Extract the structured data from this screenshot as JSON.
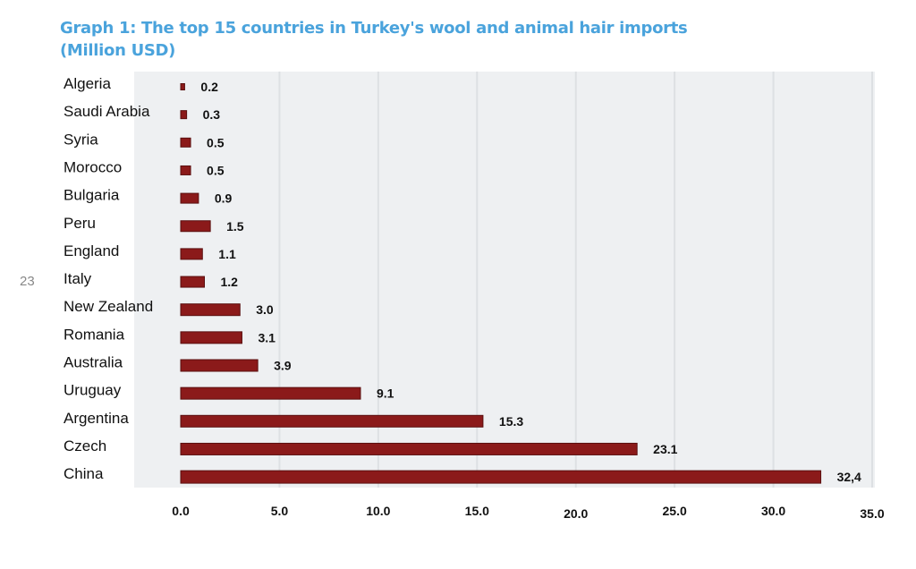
{
  "page_number": "23",
  "chart_data": {
    "type": "bar",
    "orientation": "horizontal",
    "title_line1": "Graph 1: The top 15 countries in Turkey's wool and animal hair imports",
    "title_line2": "(Million USD)",
    "categories": [
      "Algeria",
      "Saudi Arabia",
      "Syria",
      "Morocco",
      "Bulgaria",
      "Peru",
      "England",
      "Italy",
      "New Zealand",
      "Romania",
      "Australia",
      "Uruguay",
      "Argentina",
      "Czech",
      "China"
    ],
    "values": [
      0.2,
      0.3,
      0.5,
      0.5,
      0.9,
      1.5,
      1.1,
      1.2,
      3.0,
      3.1,
      3.9,
      9.1,
      15.3,
      23.1,
      32.4
    ],
    "data_labels": [
      "0.2",
      "0.3",
      "0.5",
      "0.5",
      "0.9",
      "1.5",
      "1.1",
      "1.2",
      "3.0",
      "3.1",
      "3.9",
      "9.1",
      "15.3",
      "23.1",
      "32,4"
    ],
    "xlim": [
      0,
      35
    ],
    "xticks": [
      "0.0",
      "5.0",
      "10.0",
      "15.0",
      "20.0",
      "25.0",
      "30.0",
      "35.0"
    ],
    "grid": true,
    "bar_color": "#8b1a1a",
    "background_color": "#eef0f2"
  }
}
